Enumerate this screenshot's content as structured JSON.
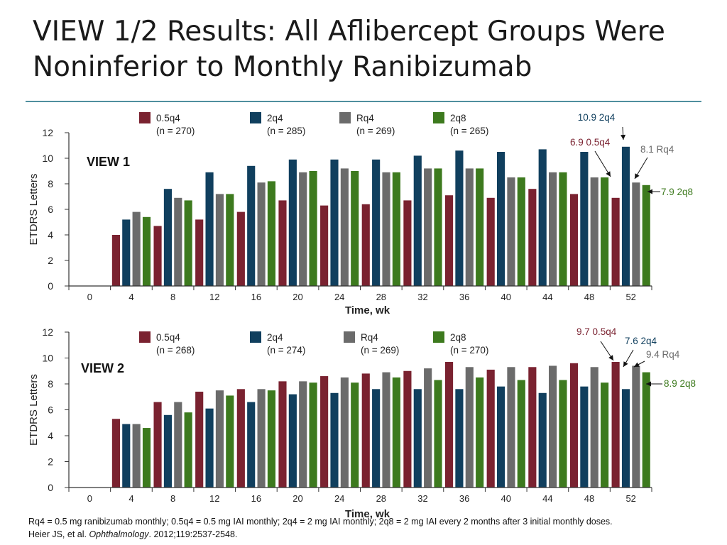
{
  "slide": {
    "title_line1": "VIEW 1/2 Results: All Aflibercept Groups Were",
    "title_line2": "Noninferior to Monthly Ranibizumab"
  },
  "footnote": {
    "line1": "Rq4 = 0.5 mg ranibizumab monthly; 0.5q4 = 0.5 mg IAI monthly; 2q4 = 2 mg IAI monthly; 2q8 = 2 mg IAI every 2 months after 3 initial monthly doses.",
    "citation_authors": "Heier JS, et al. ",
    "citation_journal": "Ophthalmology",
    "citation_details": ". 2012;119:2537-2548."
  },
  "colors": {
    "0.5q4": "#7a2230",
    "2q4": "#103f5e",
    "Rq4": "#6b6b6b",
    "2q8": "#3d7a1e"
  },
  "chart_data": [
    {
      "type": "bar",
      "title": "VIEW 1",
      "xlabel": "Time, wk",
      "ylabel": "ETDRS Letters",
      "ylim": [
        0,
        12
      ],
      "yticks": [
        "0",
        "2",
        "4",
        "6",
        "8",
        "10",
        "12"
      ],
      "categories": [
        "0",
        "4",
        "8",
        "12",
        "16",
        "20",
        "24",
        "28",
        "32",
        "36",
        "40",
        "44",
        "48",
        "52"
      ],
      "legend": [
        {
          "key": "0.5q4",
          "name": "0.5q4",
          "n": "(n = 270)"
        },
        {
          "key": "2q4",
          "name": "2q4",
          "n": "(n = 285)"
        },
        {
          "key": "Rq4",
          "name": "Rq4",
          "n": "(n = 269)"
        },
        {
          "key": "2q8",
          "name": "2q8",
          "n": "(n = 265)"
        }
      ],
      "series": [
        {
          "key": "0.5q4",
          "values": [
            null,
            4.0,
            4.7,
            5.2,
            5.8,
            6.7,
            6.3,
            6.4,
            6.7,
            7.1,
            6.9,
            7.6,
            7.2,
            6.9
          ]
        },
        {
          "key": "2q4",
          "values": [
            null,
            5.2,
            7.6,
            8.9,
            9.4,
            9.9,
            9.9,
            9.9,
            10.2,
            10.6,
            10.5,
            10.7,
            10.5,
            10.9
          ]
        },
        {
          "key": "Rq4",
          "values": [
            null,
            5.8,
            6.9,
            7.2,
            8.1,
            8.9,
            9.2,
            8.9,
            9.2,
            9.2,
            8.5,
            8.9,
            8.5,
            8.1
          ]
        },
        {
          "key": "2q8",
          "values": [
            null,
            5.4,
            6.7,
            7.2,
            8.2,
            9.0,
            9.0,
            8.9,
            9.2,
            9.2,
            8.5,
            8.9,
            8.5,
            7.9
          ]
        }
      ],
      "annotations": [
        {
          "key": "0.5q4",
          "text": "6.9 0.5q4"
        },
        {
          "key": "2q4",
          "text": "10.9 2q4"
        },
        {
          "key": "Rq4",
          "text": "8.1 Rq4"
        },
        {
          "key": "2q8",
          "text": "7.9 2q8"
        }
      ]
    },
    {
      "type": "bar",
      "title": "VIEW 2",
      "xlabel": "Time, wk",
      "ylabel": "ETDRS Letters",
      "ylim": [
        0,
        12
      ],
      "yticks": [
        "0",
        "2",
        "4",
        "6",
        "8",
        "10",
        "12"
      ],
      "categories": [
        "0",
        "4",
        "8",
        "12",
        "16",
        "20",
        "24",
        "28",
        "32",
        "36",
        "40",
        "44",
        "48",
        "52"
      ],
      "legend": [
        {
          "key": "0.5q4",
          "name": "0.5q4",
          "n": "(n = 268)"
        },
        {
          "key": "2q4",
          "name": "2q4",
          "n": "(n = 274)"
        },
        {
          "key": "Rq4",
          "name": "Rq4",
          "n": "(n = 269)"
        },
        {
          "key": "2q8",
          "name": "2q8",
          "n": "(n = 270)"
        }
      ],
      "series": [
        {
          "key": "0.5q4",
          "values": [
            null,
            5.3,
            6.6,
            7.4,
            7.6,
            8.2,
            8.6,
            8.8,
            9.0,
            9.7,
            9.1,
            9.3,
            9.6,
            9.7
          ]
        },
        {
          "key": "2q4",
          "values": [
            null,
            4.9,
            5.6,
            6.1,
            6.6,
            7.2,
            7.3,
            7.6,
            7.6,
            7.6,
            7.8,
            7.3,
            7.8,
            7.6
          ]
        },
        {
          "key": "Rq4",
          "values": [
            null,
            4.9,
            6.6,
            7.5,
            7.6,
            8.2,
            8.5,
            8.9,
            9.2,
            9.3,
            9.3,
            9.4,
            9.3,
            9.4
          ]
        },
        {
          "key": "2q8",
          "values": [
            null,
            4.6,
            5.8,
            7.1,
            7.5,
            8.1,
            8.1,
            8.5,
            8.3,
            8.5,
            8.3,
            8.3,
            8.1,
            8.9
          ]
        }
      ],
      "annotations": [
        {
          "key": "0.5q4",
          "text": "9.7 0.5q4"
        },
        {
          "key": "2q4",
          "text": "7.6 2q4"
        },
        {
          "key": "Rq4",
          "text": "9.4 Rq4"
        },
        {
          "key": "2q8",
          "text": "8.9 2q8"
        }
      ]
    }
  ]
}
